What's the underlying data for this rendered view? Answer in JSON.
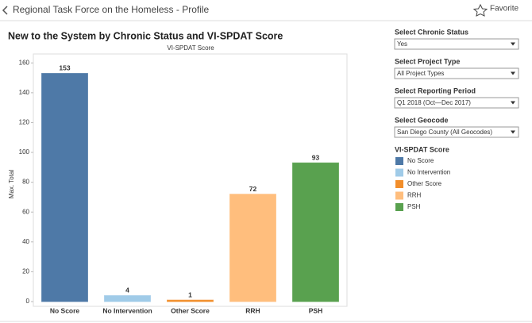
{
  "header": {
    "title": "Regional Task Force on the Homeless - Profile",
    "favorite": "Favorite"
  },
  "chart_data": {
    "type": "bar",
    "title": "New to the System by Chronic Status and VI-SPDAT Score",
    "x_label": "VI-SPDAT Score",
    "y_label": "Max. Total",
    "categories": [
      "No Score",
      "No Intervention",
      "Other Score",
      "RRH",
      "PSH"
    ],
    "values": [
      153,
      4,
      1,
      72,
      93
    ],
    "colors": [
      "#4e79a7",
      "#a0cbe8",
      "#f28e2b",
      "#ffbe7d",
      "#59a14f"
    ],
    "ylim": [
      0,
      166
    ],
    "yticks": [
      0,
      20,
      40,
      60,
      80,
      100,
      120,
      140,
      160
    ],
    "legend_title": "VI-SPDAT Score"
  },
  "filters": [
    {
      "label": "Select Chronic Status",
      "value": "Yes"
    },
    {
      "label": "Select Project Type",
      "value": "All Project Types"
    },
    {
      "label": "Select Reporting Period",
      "value": "Q1 2018 (Oct—Dec 2017)"
    },
    {
      "label": "Select Geocode",
      "value": "San Diego County (All Geocodes)"
    }
  ]
}
